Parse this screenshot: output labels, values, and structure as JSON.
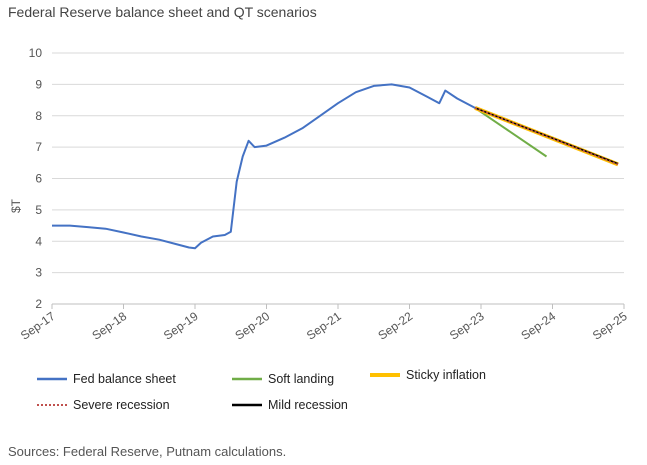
{
  "title": "Federal Reserve balance sheet and QT scenarios",
  "source": "Sources: Federal Reserve, Putnam calculations.",
  "chart_data": {
    "type": "line",
    "title": "Federal Reserve balance sheet and QT scenarios",
    "ylabel": "$T",
    "xlabel": "",
    "ylim": [
      2,
      10
    ],
    "yticks": [
      "2",
      "3",
      "4",
      "5",
      "6",
      "7",
      "8",
      "9",
      "10"
    ],
    "xlim": [
      "2017-09",
      "2025-09"
    ],
    "xticks": [
      "Sep-17",
      "Sep-18",
      "Sep-19",
      "Sep-20",
      "Sep-21",
      "Sep-22",
      "Sep-23",
      "Sep-24",
      "Sep-25"
    ],
    "grid": "horizontal",
    "legend_position": "bottom",
    "series": [
      {
        "name": "Fed balance sheet",
        "color": "#4472c4",
        "points": [
          [
            "2017-09",
            4.5
          ],
          [
            "2017-12",
            4.5
          ],
          [
            "2018-03",
            4.45
          ],
          [
            "2018-06",
            4.4
          ],
          [
            "2018-09",
            4.28
          ],
          [
            "2018-12",
            4.15
          ],
          [
            "2019-03",
            4.05
          ],
          [
            "2019-06",
            3.9
          ],
          [
            "2019-08",
            3.8
          ],
          [
            "2019-09",
            3.78
          ],
          [
            "2019-10",
            3.95
          ],
          [
            "2019-12",
            4.15
          ],
          [
            "2020-02",
            4.2
          ],
          [
            "2020-03",
            4.3
          ],
          [
            "2020-04",
            5.9
          ],
          [
            "2020-05",
            6.7
          ],
          [
            "2020-06",
            7.2
          ],
          [
            "2020-07",
            7.0
          ],
          [
            "2020-09",
            7.05
          ],
          [
            "2020-12",
            7.3
          ],
          [
            "2021-03",
            7.6
          ],
          [
            "2021-06",
            8.0
          ],
          [
            "2021-09",
            8.4
          ],
          [
            "2021-12",
            8.75
          ],
          [
            "2022-03",
            8.95
          ],
          [
            "2022-06",
            9.0
          ],
          [
            "2022-09",
            8.9
          ],
          [
            "2022-12",
            8.6
          ],
          [
            "2023-02",
            8.4
          ],
          [
            "2023-03",
            8.8
          ],
          [
            "2023-05",
            8.55
          ],
          [
            "2023-08",
            8.25
          ]
        ]
      },
      {
        "name": "Soft landing",
        "color": "#70ad47",
        "points": [
          [
            "2023-08",
            8.25
          ],
          [
            "2024-08",
            6.7
          ]
        ]
      },
      {
        "name": "Sticky inflation",
        "color": "#ffc000",
        "points": [
          [
            "2023-08",
            8.25
          ],
          [
            "2025-08",
            6.45
          ]
        ]
      },
      {
        "name": "Severe recession",
        "color": "#c0504d",
        "dashed": true,
        "points": [
          [
            "2023-08",
            8.25
          ],
          [
            "2025-08",
            6.45
          ]
        ]
      },
      {
        "name": "Mild recession",
        "color": "#000000",
        "points": [
          [
            "2023-08",
            8.25
          ],
          [
            "2025-08",
            6.47
          ]
        ]
      }
    ]
  }
}
